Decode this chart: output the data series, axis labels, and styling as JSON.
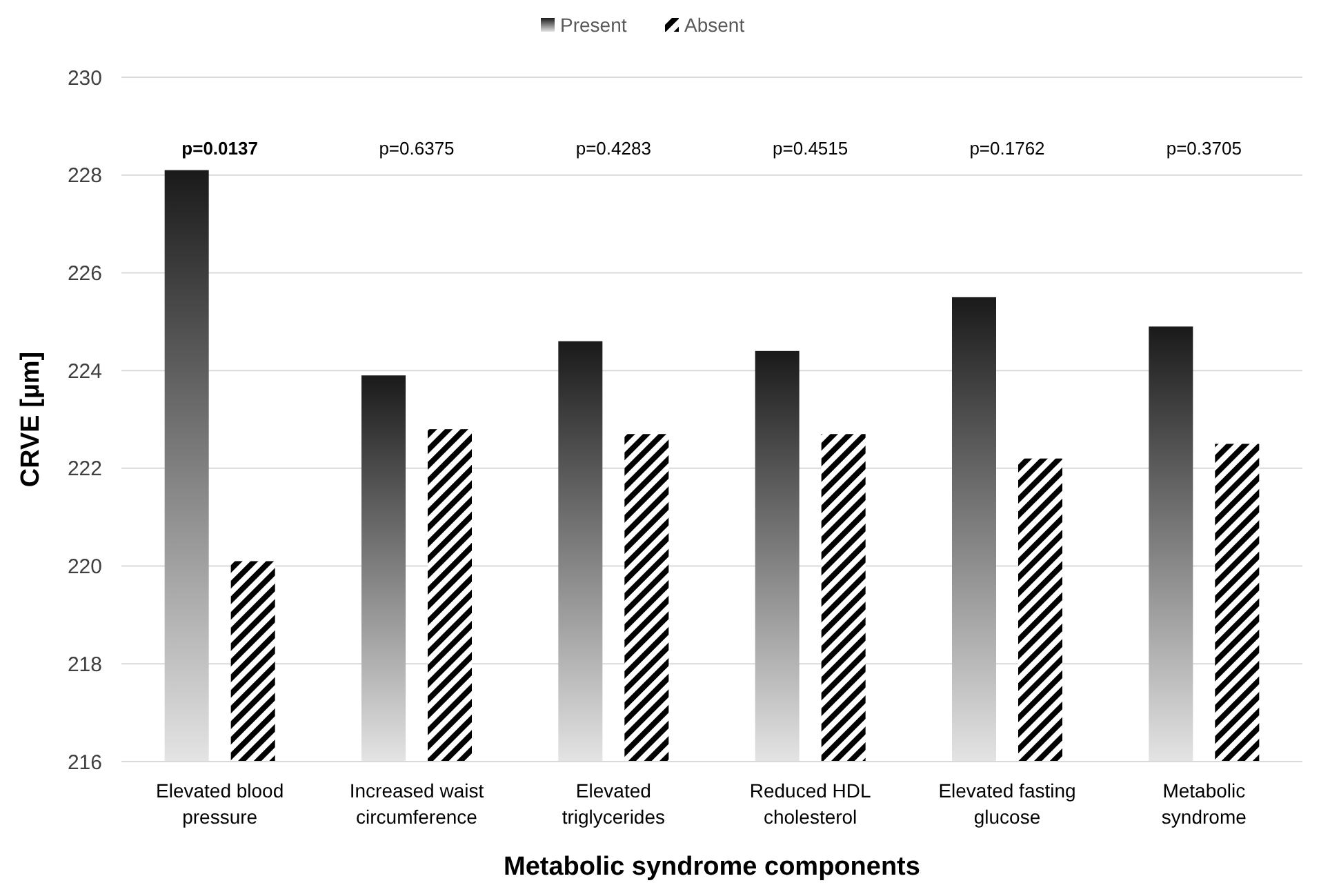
{
  "chart_data": {
    "type": "bar",
    "xlabel": "Metabolic syndrome components",
    "ylabel": "CRVE [µm]",
    "categories": [
      "Elevated blood pressure",
      "Increased waist circumference",
      "Elevated triglycerides",
      "Reduced HDL cholesterol",
      "Elevated fasting glucose",
      "Metabolic syndrome"
    ],
    "series": [
      {
        "name": "Present",
        "color": "#1a1a1a",
        "values": [
          228.1,
          223.9,
          224.6,
          224.4,
          225.5,
          224.9
        ]
      },
      {
        "name": "Absent",
        "color": "#000000",
        "values": [
          220.1,
          222.8,
          222.7,
          222.7,
          222.2,
          222.5
        ]
      }
    ],
    "ylim": [
      216,
      230
    ],
    "yticks": [
      216,
      218,
      220,
      222,
      224,
      226,
      228,
      230
    ],
    "grid": "y",
    "legend": "top",
    "annotations": [
      "p=0.0137",
      "p=0.6375",
      "p=0.4283",
      "p=0.4515",
      "p=0.1762",
      "p=0.3705"
    ]
  }
}
